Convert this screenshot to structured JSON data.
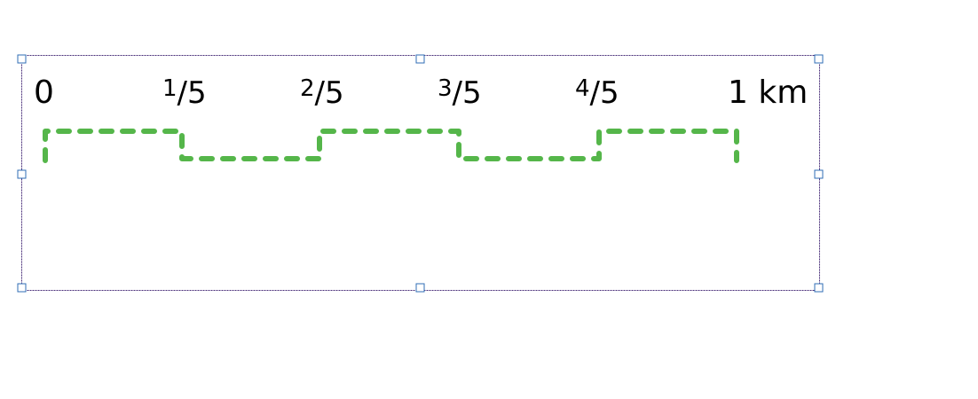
{
  "scale_bar": {
    "start_label": "0",
    "fractions": [
      {
        "numerator": "1",
        "denominator": "5"
      },
      {
        "numerator": "2",
        "denominator": "5"
      },
      {
        "numerator": "3",
        "denominator": "5"
      },
      {
        "numerator": "4",
        "denominator": "5"
      }
    ],
    "end_label": "1 km",
    "segment_count": 5,
    "line_color": "#55b64a",
    "frame_color": "#4a2f7a",
    "handle_color": "#2f6db5"
  }
}
